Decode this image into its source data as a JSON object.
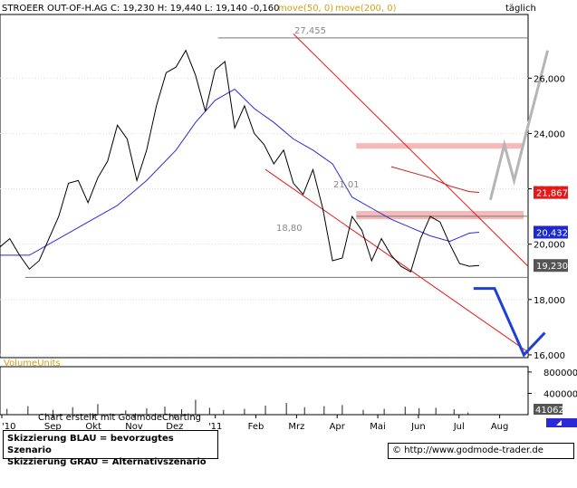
{
  "header": {
    "symbol": "STROEER OUT-OF-H.AG",
    "quote": "C: 19,230  H: 19,440  L: 19,140  -0,160",
    "ma50": "move(50, 0)",
    "ma200": "move(200, 0)",
    "interval": "täglich"
  },
  "colors": {
    "price": "#000000",
    "ma50": "#2b2bd6",
    "ma200": "#cc1b1b",
    "channel": "#e41a1a",
    "zone": "#f6b9b9",
    "scenario_blue": "#1f3fd9",
    "scenario_gray": "#b5b5b5",
    "header_orange": "#d4a017"
  },
  "annotations": {
    "high_label": "27,455",
    "mid_label": "21,01",
    "low_label": "18,80"
  },
  "price_badges": [
    {
      "value": "21,867",
      "bg": "#e21a1a",
      "fg": "#ffffff"
    },
    {
      "value": "20,432",
      "bg": "#1a2ad0",
      "fg": "#ffffff"
    },
    {
      "value": "19,230",
      "bg": "#555555",
      "fg": "#ffffff"
    }
  ],
  "volume_title": "VolumeUnits",
  "volume_badge": "41062",
  "credit": "Chart erstellt mit GodmodeCharting",
  "legend": {
    "line1": "Skizzierung BLAU = bevorzugtes Szenario",
    "line2": "Skizzierung GRAU = Alternativszenario"
  },
  "footer_url": "http://www.godmode-trader.de",
  "copyright_symbol": "©",
  "chart_data": {
    "type": "line",
    "title": "STROEER OUT-OF-H.AG",
    "x_ticks": [
      "'10",
      "Sep",
      "Okt",
      "Nov",
      "Dez",
      "'11",
      "Feb",
      "Mrz",
      "Apr",
      "Mai",
      "Jun",
      "Jul",
      "Aug"
    ],
    "y_ticks": [
      "26,000",
      "24,000",
      "22,000",
      "20,000",
      "18,000",
      "16,000"
    ],
    "ylim": [
      15.9,
      28.3
    ],
    "volume_ticks": [
      "800000",
      "400000"
    ],
    "volume_ylim": [
      0,
      900000
    ],
    "x_range_days": [
      0,
      378
    ],
    "levels": [
      {
        "label": "27,455",
        "value": 27.455
      },
      {
        "label": "21,01",
        "value": 21.01
      },
      {
        "label": "18,80",
        "value": 18.8
      }
    ],
    "resistance_zones": [
      [
        23.45,
        23.65
      ],
      [
        20.9,
        21.2
      ]
    ],
    "series": [
      {
        "name": "STROEER OUT-OF-H.AG",
        "days": [
          0,
          7,
          14,
          21,
          28,
          35,
          42,
          49,
          56,
          63,
          70,
          77,
          84,
          91,
          98,
          105,
          112,
          119,
          126,
          133,
          140,
          147,
          154,
          161,
          168,
          175,
          182,
          189,
          196,
          203,
          210,
          217,
          224,
          231,
          238,
          245,
          252,
          259,
          266,
          273,
          280,
          287,
          294,
          301,
          308,
          315,
          322,
          329,
          336,
          343
        ],
        "values": [
          19.9,
          20.2,
          19.6,
          19.1,
          19.4,
          20.2,
          21.0,
          22.2,
          22.3,
          21.5,
          22.4,
          23.0,
          24.3,
          23.8,
          22.3,
          23.4,
          25.0,
          26.2,
          26.4,
          27.0,
          26.1,
          24.8,
          26.3,
          26.6,
          24.2,
          25.0,
          24.0,
          23.6,
          22.9,
          23.4,
          22.2,
          21.8,
          22.7,
          21.3,
          19.4,
          19.5,
          21.0,
          20.5,
          19.4,
          20.2,
          19.6,
          19.2,
          19.0,
          20.2,
          21.0,
          20.8,
          20.0,
          19.3,
          19.2,
          19.23
        ]
      },
      {
        "name": "move(50, 0)",
        "days": [
          0,
          21,
          42,
          63,
          84,
          105,
          126,
          140,
          154,
          168,
          182,
          196,
          210,
          224,
          238,
          252,
          266,
          280,
          294,
          308,
          322,
          336,
          343
        ],
        "values": [
          19.6,
          19.6,
          20.2,
          20.8,
          21.4,
          22.3,
          23.4,
          24.4,
          25.2,
          25.6,
          24.9,
          24.4,
          23.8,
          23.4,
          22.9,
          21.7,
          21.3,
          20.9,
          20.6,
          20.3,
          20.1,
          20.4,
          20.43
        ]
      },
      {
        "name": "move(200, 0)",
        "days": [
          280,
          294,
          308,
          322,
          336,
          343
        ],
        "values": [
          22.8,
          22.6,
          22.4,
          22.1,
          21.9,
          21.87
        ]
      }
    ],
    "channel_lines": [
      {
        "from": [
          210,
          27.6
        ],
        "to": [
          378,
          19.2
        ]
      },
      {
        "from": [
          190,
          22.7
        ],
        "to": [
          378,
          16.1
        ]
      }
    ],
    "scenario_blue": {
      "days": [
        339,
        354,
        375,
        390
      ],
      "values": [
        18.4,
        18.4,
        16.0,
        16.8
      ]
    },
    "scenario_gray": {
      "days": [
        351,
        361,
        368,
        375,
        392
      ],
      "values": [
        21.6,
        23.6,
        22.3,
        23.7,
        27.0
      ]
    },
    "volume": {
      "days": [
        5,
        20,
        38,
        52,
        70,
        90,
        105,
        118,
        130,
        140,
        150,
        160,
        175,
        190,
        205,
        218,
        232,
        245,
        260,
        275,
        290,
        300,
        312,
        325,
        335
      ],
      "values": [
        110000,
        160000,
        90000,
        140000,
        200000,
        80000,
        120000,
        150000,
        100000,
        280000,
        130000,
        90000,
        110000,
        170000,
        220000,
        140000,
        160000,
        180000,
        90000,
        110000,
        150000,
        120000,
        130000,
        100000,
        41062
      ]
    }
  }
}
